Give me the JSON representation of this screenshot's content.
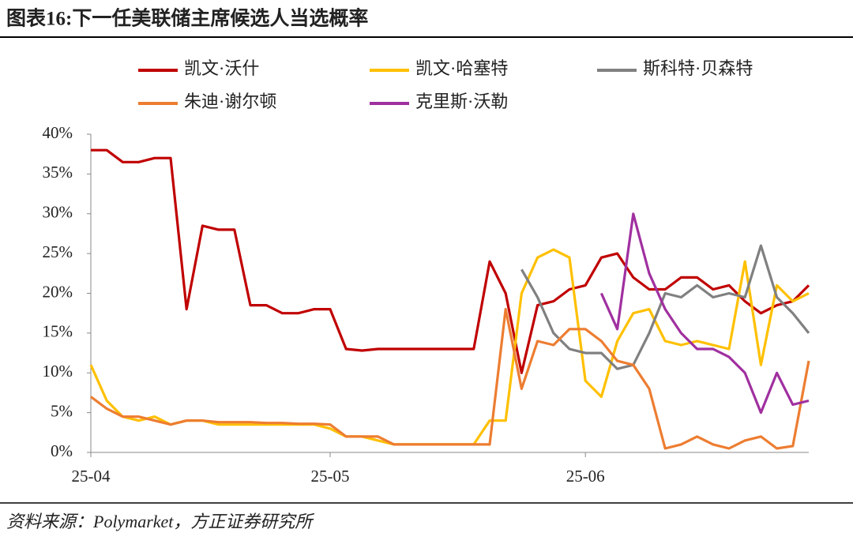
{
  "chart_data": {
    "type": "line",
    "title": "图表16:下一任美联储主席候选人当选概率",
    "source": "资料来源：Polymarket，方正证券研究所",
    "categories": [
      "25-04",
      null,
      null,
      null,
      null,
      null,
      null,
      null,
      null,
      null,
      null,
      null,
      null,
      null,
      null,
      "25-05",
      null,
      null,
      null,
      null,
      null,
      null,
      null,
      null,
      null,
      null,
      null,
      null,
      null,
      null,
      null,
      "25-06",
      null,
      null,
      null,
      null,
      null,
      null,
      null,
      null,
      null,
      null,
      null,
      null,
      null,
      null
    ],
    "series": [
      {
        "name": "凯文·沃什",
        "color": "#c00000",
        "values": [
          38,
          38,
          36.5,
          36.5,
          37,
          37,
          18,
          28.5,
          28,
          28,
          18.5,
          18.5,
          17.5,
          17.5,
          18,
          18,
          13,
          12.8,
          13,
          13,
          13,
          13,
          13,
          13,
          13,
          24,
          20,
          10,
          18.5,
          19,
          20.5,
          21,
          24.5,
          25,
          22,
          20.5,
          20.5,
          22,
          22,
          20.5,
          21,
          19,
          17.5,
          18.5,
          19,
          21
        ]
      },
      {
        "name": "凯文·哈塞特",
        "color": "#ffc000",
        "values": [
          11,
          6.5,
          4.5,
          4,
          4.5,
          3.5,
          4,
          4,
          3.5,
          3.5,
          3.5,
          3.5,
          3.5,
          3.5,
          3.5,
          3,
          2,
          2,
          1.5,
          1,
          1,
          1,
          1,
          1,
          1,
          4,
          4,
          20,
          24.5,
          25.5,
          24.5,
          9,
          7,
          14,
          17.5,
          18,
          14,
          13.5,
          14,
          13.5,
          13,
          24,
          11,
          21,
          19,
          20
        ]
      },
      {
        "name": "斯科特·贝森特",
        "color": "#808080",
        "values": [
          null,
          null,
          null,
          null,
          null,
          null,
          null,
          null,
          null,
          null,
          null,
          null,
          null,
          null,
          null,
          null,
          null,
          null,
          null,
          null,
          null,
          null,
          null,
          null,
          null,
          null,
          null,
          23,
          19.5,
          15,
          13,
          12.5,
          12.5,
          10.5,
          11,
          15,
          20,
          19.5,
          21,
          19.5,
          20,
          19.5,
          26,
          19.5,
          17.5,
          15
        ]
      },
      {
        "name": "朱迪·谢尔顿",
        "color": "#ed7d31",
        "values": [
          7,
          5.5,
          4.5,
          4.5,
          4,
          3.5,
          4,
          4,
          3.8,
          3.8,
          3.8,
          3.7,
          3.7,
          3.6,
          3.6,
          3.5,
          2,
          2,
          2,
          1,
          1,
          1,
          1,
          1,
          1,
          1,
          18,
          8,
          14,
          13.5,
          15.5,
          15.5,
          14,
          11.5,
          11,
          8,
          0.5,
          1,
          2,
          1,
          0.5,
          1.5,
          2,
          0.5,
          0.8,
          11.5
        ]
      },
      {
        "name": "克里斯·沃勒",
        "color": "#a030a0",
        "values": [
          null,
          null,
          null,
          null,
          null,
          null,
          null,
          null,
          null,
          null,
          null,
          null,
          null,
          null,
          null,
          null,
          null,
          null,
          null,
          null,
          null,
          null,
          null,
          null,
          null,
          null,
          null,
          null,
          null,
          null,
          null,
          null,
          20,
          15.5,
          30,
          22.5,
          18,
          15,
          13,
          13,
          12,
          10,
          5,
          10,
          6,
          6.5
        ]
      }
    ],
    "ylim": [
      0,
      40
    ],
    "yticks": [
      {
        "value": 0,
        "label": "0%"
      },
      {
        "value": 5,
        "label": "5%"
      },
      {
        "value": 10,
        "label": "10%"
      },
      {
        "value": 15,
        "label": "15%"
      },
      {
        "value": 20,
        "label": "20%"
      },
      {
        "value": 25,
        "label": "25%"
      },
      {
        "value": 30,
        "label": "30%"
      },
      {
        "value": 35,
        "label": "35%"
      },
      {
        "value": 40,
        "label": "40%"
      }
    ],
    "grid": false
  }
}
